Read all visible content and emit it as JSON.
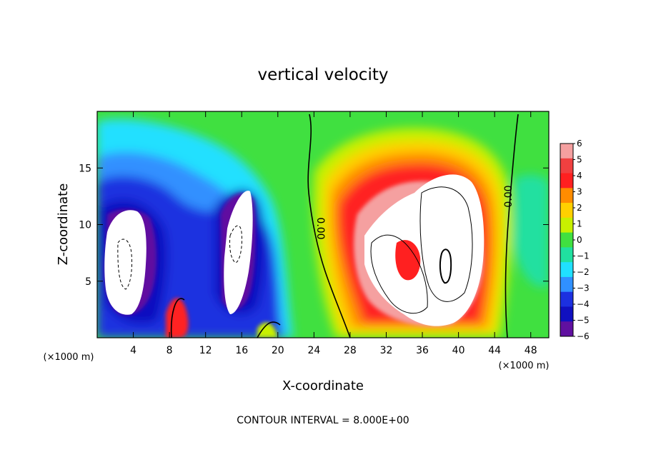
{
  "chart_data": {
    "type": "heatmap",
    "title": "vertical velocity",
    "xlabel": "X-coordinate",
    "ylabel": "Z-coordinate",
    "x_unit_label": "(×1000 m)",
    "x_unit_label_right": "(×1000 m)",
    "xlim": [
      0,
      50
    ],
    "ylim": [
      0,
      20
    ],
    "x_ticks": [
      4,
      8,
      12,
      16,
      20,
      24,
      28,
      32,
      36,
      40,
      44,
      48
    ],
    "y_ticks": [
      5,
      10,
      15
    ],
    "colorbar": {
      "levels": [
        6,
        5,
        4,
        3,
        2,
        1,
        0,
        -1,
        -2,
        -3,
        -4,
        -5,
        -6
      ],
      "labels": [
        "6",
        "5",
        "4",
        "3",
        "2",
        "1",
        "0",
        "−1",
        "−2",
        "−3",
        "−4",
        "−5",
        "−6"
      ],
      "colors": [
        "#f5a0a0",
        "#f04040",
        "#ff2020",
        "#ff8c00",
        "#ffd000",
        "#c8f000",
        "#40e040",
        "#20e0a0",
        "#20e0ff",
        "#3090ff",
        "#1c30e0",
        "#1010c0",
        "#6010a0"
      ]
    },
    "contour_labels": [
      "0.00",
      "0.00"
    ],
    "footer": "CONTOUR INTERVAL = 8.000E+00"
  }
}
